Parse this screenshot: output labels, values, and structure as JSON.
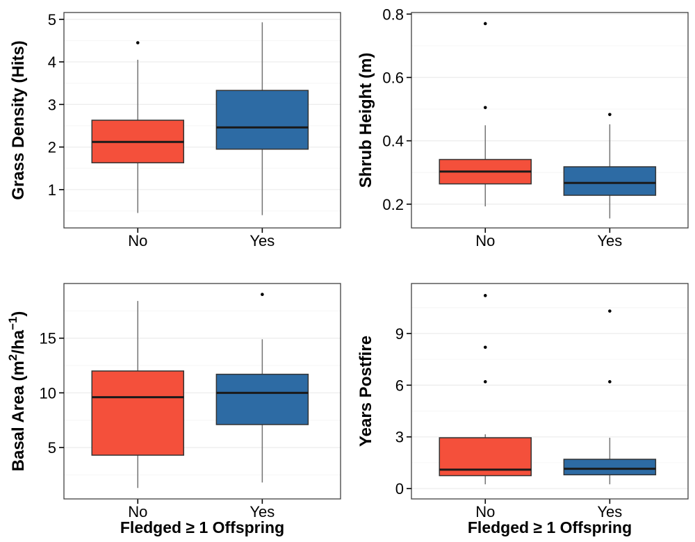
{
  "figure": {
    "xlabel": "Fledged ≥ 1 Offspring",
    "categories": [
      "No",
      "Yes"
    ],
    "colors": {
      "no_fill": "#F4503B",
      "yes_fill": "#2D6BA4",
      "box_stroke": "#333333",
      "median_line": "#1A1A1A",
      "whisker": "#737373",
      "outlier": "#000000",
      "grid_major": "#EDEDED",
      "grid_minor": "#F6F6F6",
      "panel_border": "#404040",
      "tick_mark": "#000000",
      "text": "#000000",
      "background": "#FFFFFF"
    }
  },
  "chart_data": {
    "type": "boxplot",
    "layout": "2x2-grid",
    "xlabel": "Fledged ≥ 1 Offspring",
    "categories": [
      "No",
      "Yes"
    ],
    "legend": "none",
    "panels": [
      {
        "id": "grass-density",
        "ylabel": "Grass Density (Hits)",
        "ylabel_segments": [
          {
            "t": "Grass Density (Hits)"
          }
        ],
        "ylim": [
          0.1,
          5.16
        ],
        "yticks": [
          1,
          2,
          3,
          4,
          5
        ],
        "ytick_labels": [
          "1",
          "2",
          "3",
          "4",
          "5"
        ],
        "xlabel": "",
        "boxes": [
          {
            "category": "No",
            "color_key": "no_fill",
            "whisker_low": 0.45,
            "q1": 1.63,
            "median": 2.12,
            "q3": 2.63,
            "whisker_high": 4.05,
            "outliers": [
              4.45
            ]
          },
          {
            "category": "Yes",
            "color_key": "yes_fill",
            "whisker_low": 0.4,
            "q1": 1.95,
            "median": 2.46,
            "q3": 3.33,
            "whisker_high": 4.93,
            "outliers": []
          }
        ]
      },
      {
        "id": "shrub-height",
        "ylabel": "Shrub Height (m)",
        "ylabel_segments": [
          {
            "t": "Shrub Height (m)"
          }
        ],
        "ylim": [
          0.125,
          0.805
        ],
        "yticks": [
          0.2,
          0.4,
          0.6,
          0.8
        ],
        "ytick_labels": [
          "0.2",
          "0.4",
          "0.6",
          "0.8"
        ],
        "xlabel": "",
        "boxes": [
          {
            "category": "No",
            "color_key": "no_fill",
            "whisker_low": 0.193,
            "q1": 0.264,
            "median": 0.303,
            "q3": 0.341,
            "whisker_high": 0.449,
            "outliers": [
              0.505,
              0.77
            ]
          },
          {
            "category": "Yes",
            "color_key": "yes_fill",
            "whisker_low": 0.155,
            "q1": 0.228,
            "median": 0.267,
            "q3": 0.318,
            "whisker_high": 0.452,
            "outliers": [
              0.483
            ]
          }
        ]
      },
      {
        "id": "basal-area",
        "ylabel": "Basal Area (m2/ha-1)",
        "ylabel_segments": [
          {
            "t": "Basal Area (m"
          },
          {
            "t": "2",
            "sup": true
          },
          {
            "t": "/ha"
          },
          {
            "t": "−1",
            "sup": true
          },
          {
            "t": ")"
          }
        ],
        "ylim": [
          0.3,
          20.0
        ],
        "yticks": [
          5,
          10,
          15
        ],
        "ytick_labels": [
          "5",
          "10",
          "15"
        ],
        "xlabel": "Fledged ≥ 1 Offspring",
        "boxes": [
          {
            "category": "No",
            "color_key": "no_fill",
            "whisker_low": 1.3,
            "q1": 4.3,
            "median": 9.6,
            "q3": 12.0,
            "whisker_high": 18.4,
            "outliers": []
          },
          {
            "category": "Yes",
            "color_key": "yes_fill",
            "whisker_low": 1.8,
            "q1": 7.1,
            "median": 10.0,
            "q3": 11.7,
            "whisker_high": 14.9,
            "outliers": [
              19.0
            ]
          }
        ]
      },
      {
        "id": "years-postfire",
        "ylabel": "Years Postfire",
        "ylabel_segments": [
          {
            "t": "Years Postfire"
          }
        ],
        "ylim": [
          -0.6,
          11.9
        ],
        "yticks": [
          0,
          3,
          6,
          9
        ],
        "ytick_labels": [
          "0",
          "3",
          "6",
          "9"
        ],
        "xlabel": "Fledged ≥ 1 Offspring",
        "boxes": [
          {
            "category": "No",
            "color_key": "no_fill",
            "whisker_low": 0.25,
            "q1": 0.75,
            "median": 1.1,
            "q3": 2.95,
            "whisker_high": 3.15,
            "outliers": [
              6.2,
              8.2,
              11.2
            ]
          },
          {
            "category": "Yes",
            "color_key": "yes_fill",
            "whisker_low": 0.25,
            "q1": 0.8,
            "median": 1.15,
            "q3": 1.7,
            "whisker_high": 2.95,
            "outliers": [
              6.2,
              10.3
            ]
          }
        ]
      }
    ]
  }
}
